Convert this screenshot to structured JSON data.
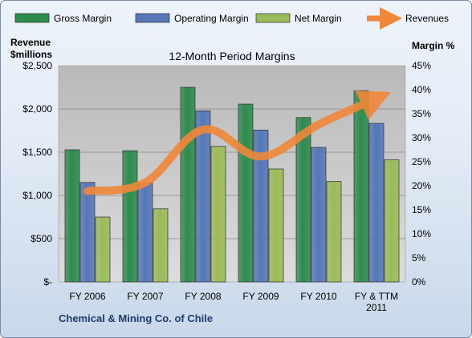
{
  "chart_data": {
    "type": "bar",
    "title": "12-Month Period Margins",
    "footer": "Chemical & Mining Co. of Chile",
    "y_left": {
      "label_line1": "Revenue",
      "label_line2": "$millions",
      "min": 0,
      "max": 2500,
      "ticks": [
        "$-",
        "$500",
        "$1,000",
        "$1,500",
        "$2,000",
        "$2,500"
      ]
    },
    "y_right": {
      "label": "Margin %",
      "min": 0,
      "max": 45,
      "ticks": [
        "0%",
        "5%",
        "10%",
        "15%",
        "20%",
        "25%",
        "30%",
        "35%",
        "40%",
        "45%"
      ]
    },
    "categories": [
      [
        "FY 2006"
      ],
      [
        "FY 2007"
      ],
      [
        "FY 2008"
      ],
      [
        "FY 2009"
      ],
      [
        "FY 2010"
      ],
      [
        "FY & TTM",
        "2011"
      ]
    ],
    "series": [
      {
        "name": "Gross Margin",
        "kind": "bar",
        "axis": "right",
        "color": "#2e8b4e",
        "values": [
          27.5,
          27.3,
          40.5,
          37.0,
          34.2,
          39.8
        ]
      },
      {
        "name": "Operating Margin",
        "kind": "bar",
        "axis": "right",
        "color": "#5577b8",
        "values": [
          20.7,
          20.6,
          35.6,
          31.6,
          28.0,
          33.0
        ]
      },
      {
        "name": "Net Margin",
        "kind": "bar",
        "axis": "right",
        "color": "#9bbb59",
        "values": [
          13.5,
          15.2,
          28.2,
          23.5,
          20.9,
          25.4
        ]
      },
      {
        "name": "Revenues",
        "kind": "line",
        "axis": "left",
        "color": "#f0883a",
        "values": [
          1050,
          1150,
          1760,
          1450,
          1820,
          2120
        ]
      }
    ],
    "legend_position": "top",
    "grid": true
  }
}
